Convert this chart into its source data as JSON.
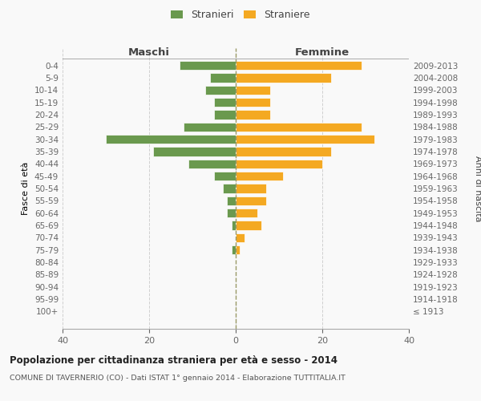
{
  "age_groups": [
    "100+",
    "95-99",
    "90-94",
    "85-89",
    "80-84",
    "75-79",
    "70-74",
    "65-69",
    "60-64",
    "55-59",
    "50-54",
    "45-49",
    "40-44",
    "35-39",
    "30-34",
    "25-29",
    "20-24",
    "15-19",
    "10-14",
    "5-9",
    "0-4"
  ],
  "birth_years": [
    "≤ 1913",
    "1914-1918",
    "1919-1923",
    "1924-1928",
    "1929-1933",
    "1934-1938",
    "1939-1943",
    "1944-1948",
    "1949-1953",
    "1954-1958",
    "1959-1963",
    "1964-1968",
    "1969-1973",
    "1974-1978",
    "1979-1983",
    "1984-1988",
    "1989-1993",
    "1994-1998",
    "1999-2003",
    "2004-2008",
    "2009-2013"
  ],
  "maschi": [
    0,
    0,
    0,
    0,
    0,
    1,
    0,
    1,
    2,
    2,
    3,
    5,
    11,
    19,
    30,
    12,
    5,
    5,
    7,
    6,
    13
  ],
  "femmine": [
    0,
    0,
    0,
    0,
    0,
    1,
    2,
    6,
    5,
    7,
    7,
    11,
    20,
    22,
    32,
    29,
    8,
    8,
    8,
    22,
    29
  ],
  "male_color": "#6a994e",
  "female_color": "#f4a922",
  "title": "Popolazione per cittadinanza straniera per età e sesso - 2014",
  "subtitle": "COMUNE DI TAVERNERIO (CO) - Dati ISTAT 1° gennaio 2014 - Elaborazione TUTTITALIA.IT",
  "xlabel_left": "Maschi",
  "xlabel_right": "Femmine",
  "ylabel_left": "Fasce di età",
  "ylabel_right": "Anni di nascita",
  "legend_male": "Stranieri",
  "legend_female": "Straniere",
  "xlim": 40,
  "background_color": "#f9f9f9",
  "grid_color": "#cccccc"
}
